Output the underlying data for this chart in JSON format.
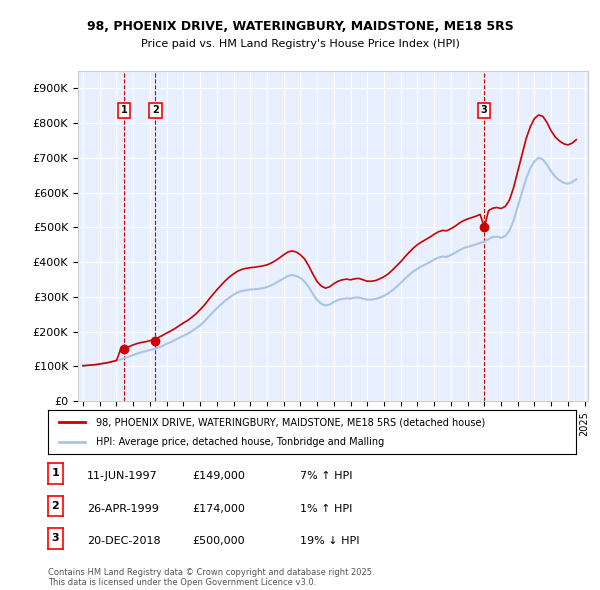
{
  "title1": "98, PHOENIX DRIVE, WATERINGBURY, MAIDSTONE, ME18 5RS",
  "title2": "Price paid vs. HM Land Registry's House Price Index (HPI)",
  "ylabel": "",
  "ylim": [
    0,
    950000
  ],
  "yticks": [
    0,
    100000,
    200000,
    300000,
    400000,
    500000,
    600000,
    700000,
    800000,
    900000
  ],
  "ytick_labels": [
    "£0",
    "£100K",
    "£200K",
    "£300K",
    "£400K",
    "£500K",
    "£600K",
    "£700K",
    "£800K",
    "£900K"
  ],
  "background_color": "#ffffff",
  "plot_bg_color": "#e8f0ff",
  "grid_color": "#ffffff",
  "hpi_color": "#aac4e8",
  "price_color": "#cc0000",
  "dashed_color": "#cc0000",
  "purchase_dates": [
    "1997-06-11",
    "1999-04-26",
    "2018-12-20"
  ],
  "purchase_prices": [
    149000,
    174000,
    500000
  ],
  "purchase_labels": [
    "1",
    "2",
    "3"
  ],
  "purchase_pct": [
    "7%↑ HPI",
    "1%↑ HPI",
    "19%↓ HPI"
  ],
  "legend_red": "98, PHOENIX DRIVE, WATERINGBURY, MAIDSTONE, ME18 5RS (detached house)",
  "legend_blue": "HPI: Average price, detached house, Tonbridge and Malling",
  "note1": "1    11-JUN-1997    £149,000    7% ↑ HPI",
  "note2": "2    26-APR-1999    £174,000    1% ↑ HPI",
  "note3": "3    20-DEC-2018    £500,000    19% ↓ HPI",
  "footnote": "Contains HM Land Registry data © Crown copyright and database right 2025.\nThis data is licensed under the Open Government Licence v3.0.",
  "hpi_x": [
    1995.0,
    1995.25,
    1995.5,
    1995.75,
    1996.0,
    1996.25,
    1996.5,
    1996.75,
    1997.0,
    1997.25,
    1997.5,
    1997.75,
    1998.0,
    1998.25,
    1998.5,
    1998.75,
    1999.0,
    1999.25,
    1999.5,
    1999.75,
    2000.0,
    2000.25,
    2000.5,
    2000.75,
    2001.0,
    2001.25,
    2001.5,
    2001.75,
    2002.0,
    2002.25,
    2002.5,
    2002.75,
    2003.0,
    2003.25,
    2003.5,
    2003.75,
    2004.0,
    2004.25,
    2004.5,
    2004.75,
    2005.0,
    2005.25,
    2005.5,
    2005.75,
    2006.0,
    2006.25,
    2006.5,
    2006.75,
    2007.0,
    2007.25,
    2007.5,
    2007.75,
    2008.0,
    2008.25,
    2008.5,
    2008.75,
    2009.0,
    2009.25,
    2009.5,
    2009.75,
    2010.0,
    2010.25,
    2010.5,
    2010.75,
    2011.0,
    2011.25,
    2011.5,
    2011.75,
    2012.0,
    2012.25,
    2012.5,
    2012.75,
    2013.0,
    2013.25,
    2013.5,
    2013.75,
    2014.0,
    2014.25,
    2014.5,
    2014.75,
    2015.0,
    2015.25,
    2015.5,
    2015.75,
    2016.0,
    2016.25,
    2016.5,
    2016.75,
    2017.0,
    2017.25,
    2017.5,
    2017.75,
    2018.0,
    2018.25,
    2018.5,
    2018.75,
    2019.0,
    2019.25,
    2019.5,
    2019.75,
    2020.0,
    2020.25,
    2020.5,
    2020.75,
    2021.0,
    2021.25,
    2021.5,
    2021.75,
    2022.0,
    2022.25,
    2022.5,
    2022.75,
    2023.0,
    2023.25,
    2023.5,
    2023.75,
    2024.0,
    2024.25,
    2024.5
  ],
  "hpi_y": [
    102000,
    103000,
    104000,
    105000,
    107000,
    109000,
    111000,
    114000,
    117000,
    120000,
    124000,
    128000,
    133000,
    137000,
    141000,
    144000,
    147000,
    150000,
    154000,
    159000,
    165000,
    170000,
    176000,
    182000,
    188000,
    194000,
    201000,
    209000,
    218000,
    229000,
    242000,
    255000,
    267000,
    278000,
    289000,
    298000,
    306000,
    313000,
    317000,
    319000,
    321000,
    322000,
    323000,
    325000,
    328000,
    333000,
    339000,
    346000,
    353000,
    360000,
    363000,
    360000,
    354000,
    344000,
    328000,
    308000,
    291000,
    280000,
    275000,
    278000,
    285000,
    291000,
    294000,
    296000,
    295000,
    298000,
    298000,
    295000,
    292000,
    292000,
    294000,
    298000,
    303000,
    310000,
    319000,
    329000,
    340000,
    352000,
    363000,
    373000,
    381000,
    388000,
    394000,
    400000,
    407000,
    413000,
    416000,
    415000,
    420000,
    427000,
    434000,
    440000,
    444000,
    447000,
    451000,
    455000,
    459000,
    466000,
    472000,
    473000,
    470000,
    475000,
    490000,
    520000,
    560000,
    600000,
    640000,
    670000,
    690000,
    700000,
    695000,
    680000,
    660000,
    645000,
    635000,
    628000,
    625000,
    630000,
    638000
  ],
  "price_x": [
    1995.0,
    1995.25,
    1995.5,
    1995.75,
    1996.0,
    1996.25,
    1996.5,
    1996.75,
    1997.0,
    1997.25,
    1997.5,
    1997.75,
    1998.0,
    1998.25,
    1998.5,
    1998.75,
    1999.0,
    1999.25,
    1999.5,
    1999.75,
    2000.0,
    2000.25,
    2000.5,
    2000.75,
    2001.0,
    2001.25,
    2001.5,
    2001.75,
    2002.0,
    2002.25,
    2002.5,
    2002.75,
    2003.0,
    2003.25,
    2003.5,
    2003.75,
    2004.0,
    2004.25,
    2004.5,
    2004.75,
    2005.0,
    2005.25,
    2005.5,
    2005.75,
    2006.0,
    2006.25,
    2006.5,
    2006.75,
    2007.0,
    2007.25,
    2007.5,
    2007.75,
    2008.0,
    2008.25,
    2008.5,
    2008.75,
    2009.0,
    2009.25,
    2009.5,
    2009.75,
    2010.0,
    2010.25,
    2010.5,
    2010.75,
    2011.0,
    2011.25,
    2011.5,
    2011.75,
    2012.0,
    2012.25,
    2012.5,
    2012.75,
    2013.0,
    2013.25,
    2013.5,
    2013.75,
    2014.0,
    2014.25,
    2014.5,
    2014.75,
    2015.0,
    2015.25,
    2015.5,
    2015.75,
    2016.0,
    2016.25,
    2016.5,
    2016.75,
    2017.0,
    2017.25,
    2017.5,
    2017.75,
    2018.0,
    2018.25,
    2018.5,
    2018.75,
    2019.0,
    2019.25,
    2019.5,
    2019.75,
    2020.0,
    2020.25,
    2020.5,
    2020.75,
    2021.0,
    2021.25,
    2021.5,
    2021.75,
    2022.0,
    2022.25,
    2022.5,
    2022.75,
    2023.0,
    2023.25,
    2023.5,
    2023.75,
    2024.0,
    2024.25,
    2024.5
  ],
  "price_y": [
    102000,
    103000,
    104000,
    105000,
    107000,
    109000,
    111000,
    114000,
    117000,
    149000,
    153000,
    157000,
    162000,
    166000,
    169000,
    171000,
    174000,
    178000,
    183000,
    189000,
    196000,
    202000,
    209000,
    217000,
    225000,
    232000,
    241000,
    251000,
    263000,
    276000,
    291000,
    306000,
    320000,
    333000,
    346000,
    357000,
    366000,
    374000,
    379000,
    382000,
    384000,
    385000,
    387000,
    389000,
    392000,
    397000,
    404000,
    412000,
    421000,
    429000,
    432000,
    429000,
    421000,
    409000,
    389000,
    365000,
    344000,
    331000,
    325000,
    329000,
    338000,
    345000,
    349000,
    351000,
    349000,
    352000,
    353000,
    349000,
    345000,
    345000,
    347000,
    352000,
    358000,
    366000,
    377000,
    389000,
    401000,
    415000,
    428000,
    440000,
    450000,
    458000,
    465000,
    472000,
    480000,
    487000,
    491000,
    490000,
    496000,
    503000,
    512000,
    519000,
    524000,
    528000,
    532000,
    537000,
    500000,
    548000,
    555000,
    557000,
    554000,
    560000,
    578000,
    614000,
    661000,
    708000,
    755000,
    789000,
    813000,
    823000,
    819000,
    801000,
    777000,
    759000,
    748000,
    740000,
    737000,
    742000,
    752000
  ]
}
